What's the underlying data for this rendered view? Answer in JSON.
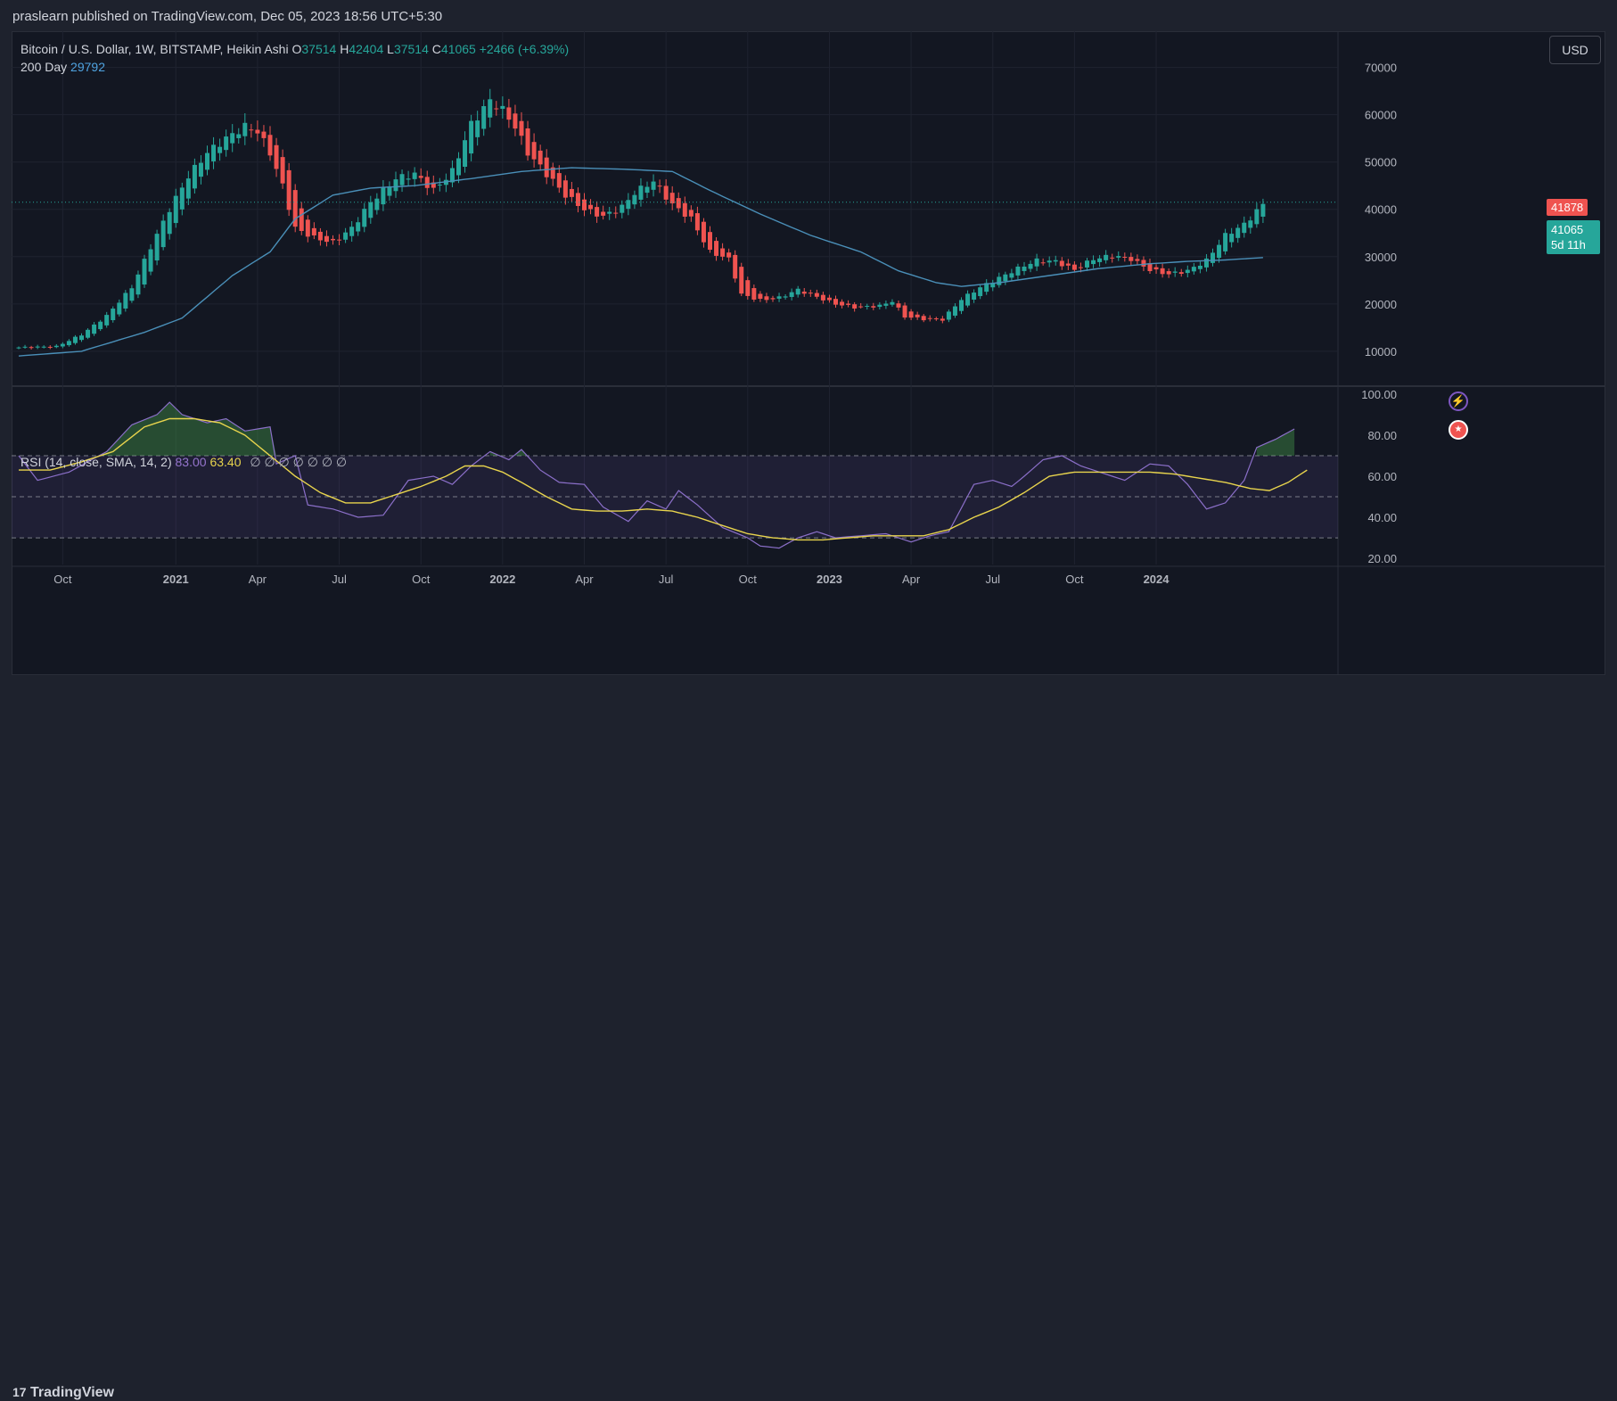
{
  "header": {
    "published": "praslearn published on TradingView.com, Dec 05, 2023 18:56 UTC+5:30"
  },
  "legend": {
    "symbol": "Bitcoin / U.S. Dollar, 1W, BITSTAMP, Heikin Ashi",
    "o_label": "O",
    "o_value": "37514",
    "h_label": "H",
    "h_value": "42404",
    "l_label": "L",
    "l_value": "37514",
    "c_label": "C",
    "c_value": "41065",
    "change": "+2466 (+6.39%)",
    "ma_label": "200 Day",
    "ma_value": "29792"
  },
  "rsi_legend": {
    "label": "RSI (14, close, SMA, 14, 2)",
    "rsi_value": "83.00",
    "sma_value": "63.40",
    "empties": "∅  ∅  ∅  ∅  ∅  ∅  ∅"
  },
  "currency_button": "USD",
  "price_tags": {
    "last": "41878",
    "current": "41065",
    "countdown": "5d 11h"
  },
  "footer": {
    "logo_text": "TradingView"
  },
  "icons": {
    "bolt": "lightning-icon",
    "flag": "us-flag-icon"
  },
  "colors": {
    "up": "#26a69a",
    "down": "#ef5350",
    "ma": "#4a8fb8",
    "rsi": "#8b6fc9",
    "rsi_sma": "#e8d44d"
  },
  "chart_data": [
    {
      "type": "candlestick",
      "title": "",
      "x_tick_labels": [
        "Oct",
        "2021",
        "Apr",
        "Jul",
        "Oct",
        "2022",
        "Apr",
        "Jul",
        "Oct",
        "2023",
        "Apr",
        "Jul",
        "Oct",
        "2024"
      ],
      "y_tick_labels": [
        "10000",
        "20000",
        "30000",
        "40000",
        "50000",
        "60000",
        "70000"
      ],
      "ylim": [
        3000,
        72000
      ],
      "grid": true,
      "note_series": "weekly Heikin Ashi candles, keypoints [week_index, close]; candles derived",
      "price_keypoints": [
        [
          0,
          10800
        ],
        [
          6,
          11000
        ],
        [
          10,
          13500
        ],
        [
          14,
          17500
        ],
        [
          18,
          23500
        ],
        [
          21,
          32000
        ],
        [
          24,
          40000
        ],
        [
          27,
          47000
        ],
        [
          30,
          52000
        ],
        [
          33,
          55000
        ],
        [
          36,
          57500
        ],
        [
          38,
          56500
        ],
        [
          40,
          52000
        ],
        [
          42,
          45000
        ],
        [
          44,
          36000
        ],
        [
          47,
          34000
        ],
        [
          50,
          33000
        ],
        [
          53,
          36000
        ],
        [
          56,
          41500
        ],
        [
          60,
          46500
        ],
        [
          63,
          47500
        ],
        [
          66,
          44000
        ],
        [
          69,
          48000
        ],
        [
          72,
          58000
        ],
        [
          75,
          63000
        ],
        [
          77,
          61000
        ],
        [
          79,
          57500
        ],
        [
          81,
          52000
        ],
        [
          84,
          47500
        ],
        [
          87,
          43000
        ],
        [
          90,
          40000
        ],
        [
          93,
          38500
        ],
        [
          96,
          40500
        ],
        [
          98,
          43500
        ],
        [
          101,
          46000
        ],
        [
          104,
          41000
        ],
        [
          107,
          38000
        ],
        [
          110,
          31000
        ],
        [
          113,
          29500
        ],
        [
          115,
          22000
        ],
        [
          118,
          20800
        ],
        [
          121,
          21300
        ],
        [
          124,
          23000
        ],
        [
          127,
          21500
        ],
        [
          130,
          20000
        ],
        [
          133,
          19300
        ],
        [
          137,
          19600
        ],
        [
          139,
          20600
        ],
        [
          141,
          17300
        ],
        [
          144,
          16800
        ],
        [
          147,
          16700
        ],
        [
          150,
          21000
        ],
        [
          153,
          23500
        ],
        [
          156,
          25500
        ],
        [
          159,
          27500
        ],
        [
          162,
          29200
        ],
        [
          165,
          29000
        ],
        [
          168,
          27200
        ],
        [
          171,
          29500
        ],
        [
          174,
          30200
        ],
        [
          177,
          29500
        ],
        [
          180,
          27200
        ],
        [
          183,
          26300
        ],
        [
          186,
          27000
        ],
        [
          189,
          29200
        ],
        [
          192,
          34500
        ],
        [
          195,
          36800
        ],
        [
          198,
          41065
        ]
      ],
      "ma_label": "200 Day",
      "ma_keypoints": [
        [
          0,
          9000
        ],
        [
          10,
          10000
        ],
        [
          20,
          14000
        ],
        [
          26,
          17000
        ],
        [
          34,
          26000
        ],
        [
          40,
          31000
        ],
        [
          44,
          38000
        ],
        [
          50,
          43000
        ],
        [
          56,
          44500
        ],
        [
          63,
          45000
        ],
        [
          72,
          46500
        ],
        [
          80,
          48000
        ],
        [
          88,
          48800
        ],
        [
          96,
          48500
        ],
        [
          104,
          48000
        ],
        [
          110,
          44000
        ],
        [
          118,
          39000
        ],
        [
          126,
          34500
        ],
        [
          134,
          31000
        ],
        [
          140,
          27000
        ],
        [
          146,
          24500
        ],
        [
          150,
          23700
        ],
        [
          156,
          24500
        ],
        [
          164,
          26000
        ],
        [
          172,
          27500
        ],
        [
          180,
          28500
        ],
        [
          186,
          29000
        ],
        [
          192,
          29300
        ],
        [
          198,
          29800
        ]
      ]
    },
    {
      "type": "line",
      "title": "RSI (14, close, SMA, 14, 2)",
      "y_tick_labels": [
        "20.00",
        "40.00",
        "60.00",
        "80.00",
        "100.00"
      ],
      "ylim": [
        17,
        103
      ],
      "band": [
        30,
        70
      ],
      "series": [
        {
          "name": "RSI",
          "keypoints": [
            [
              0,
              70
            ],
            [
              3,
              58
            ],
            [
              8,
              62
            ],
            [
              14,
              72
            ],
            [
              18,
              85
            ],
            [
              22,
              90
            ],
            [
              24,
              96
            ],
            [
              26,
              90
            ],
            [
              30,
              86
            ],
            [
              33,
              88
            ],
            [
              36,
              82
            ],
            [
              40,
              84
            ],
            [
              41,
              66
            ],
            [
              44,
              70
            ],
            [
              46,
              46
            ],
            [
              50,
              44
            ],
            [
              54,
              40
            ],
            [
              58,
              41
            ],
            [
              62,
              58
            ],
            [
              66,
              60
            ],
            [
              69,
              56
            ],
            [
              72,
              65
            ],
            [
              75,
              72
            ],
            [
              78,
              68
            ],
            [
              80,
              73
            ],
            [
              83,
              63
            ],
            [
              86,
              57
            ],
            [
              90,
              56
            ],
            [
              93,
              45
            ],
            [
              97,
              38
            ],
            [
              100,
              48
            ],
            [
              103,
              44
            ],
            [
              105,
              53
            ],
            [
              108,
              46
            ],
            [
              112,
              35
            ],
            [
              116,
              30
            ],
            [
              118,
              26
            ],
            [
              121,
              25
            ],
            [
              124,
              30
            ],
            [
              127,
              33
            ],
            [
              130,
              30
            ],
            [
              134,
              31
            ],
            [
              138,
              32
            ],
            [
              142,
              28
            ],
            [
              145,
              31
            ],
            [
              148,
              33
            ],
            [
              152,
              56
            ],
            [
              155,
              58
            ],
            [
              158,
              55
            ],
            [
              160,
              60
            ],
            [
              163,
              68
            ],
            [
              166,
              70
            ],
            [
              169,
              65
            ],
            [
              172,
              62
            ],
            [
              176,
              58
            ],
            [
              180,
              66
            ],
            [
              183,
              65
            ],
            [
              186,
              56
            ],
            [
              189,
              44
            ],
            [
              192,
              47
            ],
            [
              195,
              58
            ],
            [
              197,
              74
            ],
            [
              200,
              78
            ],
            [
              203,
              83
            ]
          ]
        },
        {
          "name": "SMA",
          "keypoints": [
            [
              0,
              63
            ],
            [
              5,
              63
            ],
            [
              10,
              67
            ],
            [
              15,
              72
            ],
            [
              20,
              84
            ],
            [
              24,
              88
            ],
            [
              28,
              88
            ],
            [
              32,
              86
            ],
            [
              36,
              80
            ],
            [
              40,
              70
            ],
            [
              44,
              60
            ],
            [
              48,
              52
            ],
            [
              52,
              47
            ],
            [
              56,
              47
            ],
            [
              60,
              51
            ],
            [
              64,
              55
            ],
            [
              68,
              60
            ],
            [
              71,
              65
            ],
            [
              74,
              65
            ],
            [
              77,
              62
            ],
            [
              80,
              57
            ],
            [
              84,
              50
            ],
            [
              88,
              44
            ],
            [
              92,
              43
            ],
            [
              96,
              43
            ],
            [
              100,
              44
            ],
            [
              104,
              43
            ],
            [
              108,
              40
            ],
            [
              112,
              36
            ],
            [
              116,
              32
            ],
            [
              120,
              30
            ],
            [
              124,
              29
            ],
            [
              128,
              29
            ],
            [
              132,
              30
            ],
            [
              136,
              31
            ],
            [
              140,
              31
            ],
            [
              144,
              31
            ],
            [
              148,
              34
            ],
            [
              152,
              40
            ],
            [
              156,
              45
            ],
            [
              160,
              52
            ],
            [
              164,
              60
            ],
            [
              168,
              62
            ],
            [
              172,
              62
            ],
            [
              176,
              62
            ],
            [
              180,
              62
            ],
            [
              184,
              61
            ],
            [
              188,
              59
            ],
            [
              192,
              57
            ],
            [
              196,
              54
            ],
            [
              199,
              53
            ],
            [
              202,
              57
            ],
            [
              205,
              63
            ]
          ]
        }
      ]
    }
  ]
}
